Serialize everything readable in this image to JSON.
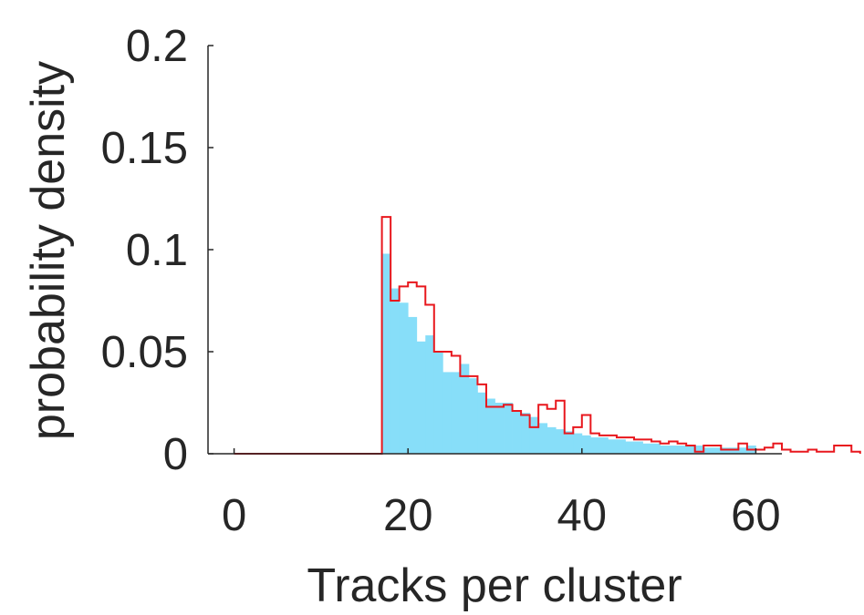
{
  "chart_data": {
    "type": "bar",
    "xlabel": "Tracks per cluster",
    "ylabel": "probability density",
    "xlim": [
      -3,
      63
    ],
    "ylim": [
      0,
      0.2
    ],
    "xticks": [
      0,
      20,
      40,
      60
    ],
    "yticks": [
      0,
      0.05,
      0.1,
      0.15,
      0.2
    ],
    "xtick_labels": [
      "0",
      "20",
      "40",
      "60"
    ],
    "ytick_labels": [
      "0",
      "0.05",
      "0.1",
      "0.15",
      "0.2"
    ],
    "grid": false,
    "bin_edges": [
      17,
      18,
      19,
      20,
      21,
      22,
      23,
      24,
      25,
      26,
      27,
      28,
      29,
      30,
      31,
      32,
      33,
      34,
      35,
      36,
      37,
      38,
      39,
      40,
      41,
      42,
      43,
      44,
      45,
      46,
      47,
      48,
      49,
      50,
      51,
      52,
      53,
      54,
      55,
      56,
      57,
      58,
      59,
      60
    ],
    "series": [
      {
        "kind": "filled-histogram",
        "color": "#87DEF9",
        "values": [
          0.098,
          0.081,
          0.074,
          0.067,
          0.055,
          0.058,
          0.05,
          0.04,
          0.04,
          0.044,
          0.037,
          0.03,
          0.027,
          0.025,
          0.025,
          0.021,
          0.02,
          0.018,
          0.015,
          0.013,
          0.012,
          0.011,
          0.01,
          0.009,
          0.008,
          0.008,
          0.007,
          0.007,
          0.006,
          0.006,
          0.005,
          0.005,
          0.004,
          0.004,
          0.004,
          0.004,
          0.004,
          0.003,
          0.003,
          0.003,
          0.003,
          0.003,
          0.004
        ]
      },
      {
        "kind": "step-histogram",
        "color": "#E8171D",
        "range_start": 0,
        "values": [
          0.116,
          0.075,
          0.082,
          0.084,
          0.082,
          0.073,
          0.05,
          0.05,
          0.048,
          0.038,
          0.038,
          0.034,
          0.023,
          0.023,
          0.024,
          0.021,
          0.019,
          0.013,
          0.024,
          0.022,
          0.026,
          0.01,
          0.013,
          0.019,
          0.01,
          0.009,
          0.009,
          0.008,
          0.008,
          0.007,
          0.007,
          0.006,
          0.005,
          0.006,
          0.005,
          0.004,
          0.001,
          0.004,
          0.004,
          0.002,
          0.002,
          0.005,
          0.002,
          0.002,
          0.003,
          0.005,
          0.002,
          0.001,
          0.001,
          0.002,
          0.001,
          0.001,
          0.004,
          0.004,
          0.001
        ]
      }
    ]
  }
}
